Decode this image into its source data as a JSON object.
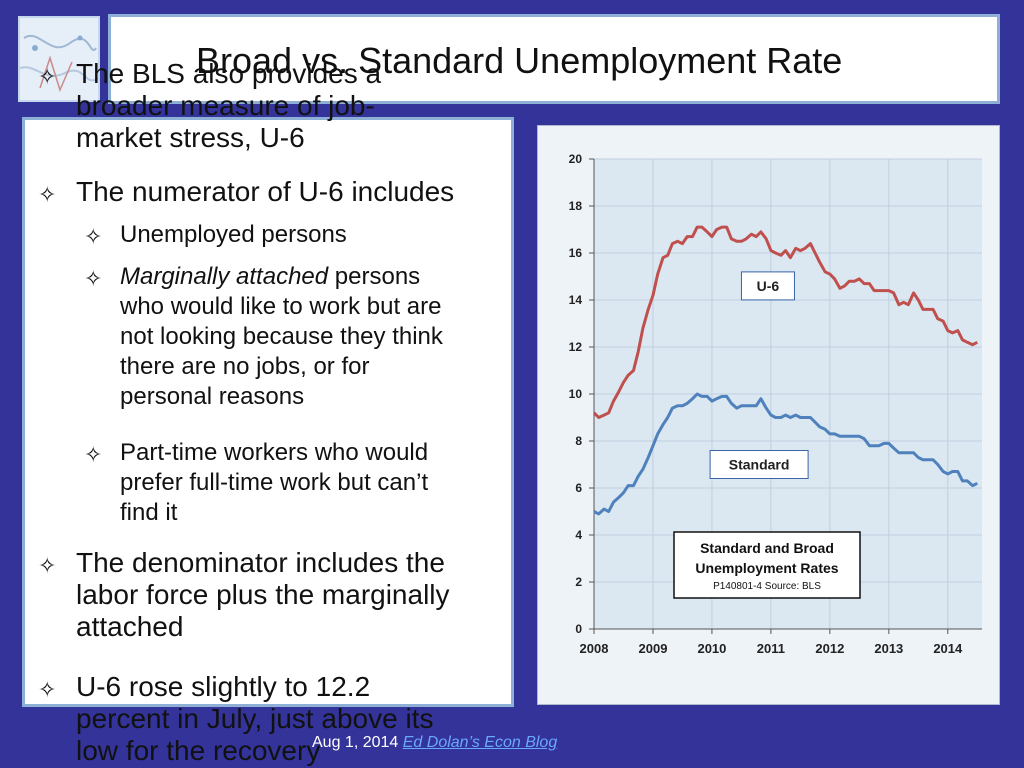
{
  "slide": {
    "title": "Broad vs. Standard Unemployment Rate",
    "bullets": [
      {
        "level": 1,
        "lines": [
          "The BLS also provides a",
          "broader measure of job-",
          "market stress, U-6"
        ]
      },
      {
        "level": 1,
        "lines": [
          "The numerator of U-6 includes"
        ]
      },
      {
        "level": 2,
        "lines": [
          "Unemployed persons"
        ]
      },
      {
        "level": 2,
        "emph": "Marginally attached",
        "lines": [
          " persons",
          "who would like to work but are",
          "not looking because they think",
          "there are no jobs, or for",
          "personal reasons"
        ]
      },
      {
        "level": 2,
        "lines": [
          "Part-time workers who would",
          "prefer full-time work but can’t",
          "find it"
        ]
      },
      {
        "level": 1,
        "lines": [
          "The denominator includes the",
          "labor force plus the marginally",
          "attached"
        ]
      },
      {
        "level": 1,
        "lines": [
          "U-6 rose slightly to 12.2",
          "percent in July, just above its",
          "low for the recovery"
        ]
      }
    ],
    "footer": {
      "date": "Aug 1, 2014",
      "link_text": "Ed Dolan’s Econ Blog"
    }
  },
  "chart_data": {
    "type": "line",
    "title": "Standard and Broad Unemployment Rates",
    "subtitle": "P140801-4 Source: BLS",
    "xlim": [
      2008,
      2014.58
    ],
    "ylim": [
      0,
      20
    ],
    "yticks": [
      0,
      2,
      4,
      6,
      8,
      10,
      12,
      14,
      16,
      18,
      20
    ],
    "xticks": [
      2008,
      2009,
      2010,
      2011,
      2012,
      2013,
      2014
    ],
    "grid": true,
    "series": [
      {
        "name": "U-6",
        "color": "#c0504d",
        "x": [
          2008.0,
          2008.08,
          2008.17,
          2008.25,
          2008.33,
          2008.42,
          2008.5,
          2008.58,
          2008.67,
          2008.75,
          2008.83,
          2008.92,
          2009.0,
          2009.08,
          2009.17,
          2009.25,
          2009.33,
          2009.42,
          2009.5,
          2009.58,
          2009.67,
          2009.75,
          2009.83,
          2009.92,
          2010.0,
          2010.08,
          2010.17,
          2010.25,
          2010.33,
          2010.42,
          2010.5,
          2010.58,
          2010.67,
          2010.75,
          2010.83,
          2010.92,
          2011.0,
          2011.08,
          2011.17,
          2011.25,
          2011.33,
          2011.42,
          2011.5,
          2011.58,
          2011.67,
          2011.75,
          2011.83,
          2011.92,
          2012.0,
          2012.08,
          2012.17,
          2012.25,
          2012.33,
          2012.42,
          2012.5,
          2012.58,
          2012.67,
          2012.75,
          2012.83,
          2012.92,
          2013.0,
          2013.08,
          2013.17,
          2013.25,
          2013.33,
          2013.42,
          2013.5,
          2013.58,
          2013.67,
          2013.75,
          2013.83,
          2013.92,
          2014.0,
          2014.08,
          2014.17,
          2014.25,
          2014.33,
          2014.42,
          2014.5
        ],
        "values": [
          9.2,
          9.0,
          9.1,
          9.2,
          9.7,
          10.1,
          10.5,
          10.8,
          11.0,
          11.8,
          12.8,
          13.6,
          14.2,
          15.1,
          15.8,
          15.9,
          16.4,
          16.5,
          16.4,
          16.7,
          16.7,
          17.1,
          17.1,
          16.9,
          16.7,
          17.0,
          17.1,
          17.1,
          16.6,
          16.5,
          16.5,
          16.6,
          16.8,
          16.7,
          16.9,
          16.6,
          16.1,
          16.0,
          15.9,
          16.1,
          15.8,
          16.2,
          16.1,
          16.2,
          16.4,
          16.0,
          15.6,
          15.2,
          15.1,
          14.9,
          14.5,
          14.6,
          14.8,
          14.8,
          14.9,
          14.7,
          14.7,
          14.4,
          14.4,
          14.4,
          14.4,
          14.3,
          13.8,
          13.9,
          13.8,
          14.3,
          14.0,
          13.6,
          13.6,
          13.6,
          13.2,
          13.1,
          12.7,
          12.6,
          12.7,
          12.3,
          12.2,
          12.1,
          12.2
        ]
      },
      {
        "name": "Standard",
        "color": "#4f81bd",
        "x": [
          2008.0,
          2008.08,
          2008.17,
          2008.25,
          2008.33,
          2008.42,
          2008.5,
          2008.58,
          2008.67,
          2008.75,
          2008.83,
          2008.92,
          2009.0,
          2009.08,
          2009.17,
          2009.25,
          2009.33,
          2009.42,
          2009.5,
          2009.58,
          2009.67,
          2009.75,
          2009.83,
          2009.92,
          2010.0,
          2010.08,
          2010.17,
          2010.25,
          2010.33,
          2010.42,
          2010.5,
          2010.58,
          2010.67,
          2010.75,
          2010.83,
          2010.92,
          2011.0,
          2011.08,
          2011.17,
          2011.25,
          2011.33,
          2011.42,
          2011.5,
          2011.58,
          2011.67,
          2011.75,
          2011.83,
          2011.92,
          2012.0,
          2012.08,
          2012.17,
          2012.25,
          2012.33,
          2012.42,
          2012.5,
          2012.58,
          2012.67,
          2012.75,
          2012.83,
          2012.92,
          2013.0,
          2013.08,
          2013.17,
          2013.25,
          2013.33,
          2013.42,
          2013.5,
          2013.58,
          2013.67,
          2013.75,
          2013.83,
          2013.92,
          2014.0,
          2014.08,
          2014.17,
          2014.25,
          2014.33,
          2014.42,
          2014.5
        ],
        "values": [
          5.0,
          4.9,
          5.1,
          5.0,
          5.4,
          5.6,
          5.8,
          6.1,
          6.1,
          6.5,
          6.8,
          7.3,
          7.8,
          8.3,
          8.7,
          9.0,
          9.4,
          9.5,
          9.5,
          9.6,
          9.8,
          10.0,
          9.9,
          9.9,
          9.7,
          9.8,
          9.9,
          9.9,
          9.6,
          9.4,
          9.5,
          9.5,
          9.5,
          9.5,
          9.8,
          9.4,
          9.1,
          9.0,
          9.0,
          9.1,
          9.0,
          9.1,
          9.0,
          9.0,
          9.0,
          8.8,
          8.6,
          8.5,
          8.3,
          8.3,
          8.2,
          8.2,
          8.2,
          8.2,
          8.2,
          8.1,
          7.8,
          7.8,
          7.8,
          7.9,
          7.9,
          7.7,
          7.5,
          7.5,
          7.5,
          7.5,
          7.3,
          7.2,
          7.2,
          7.2,
          7.0,
          6.7,
          6.6,
          6.7,
          6.7,
          6.3,
          6.3,
          6.1,
          6.2
        ]
      }
    ],
    "series_labels": [
      {
        "text": "U-6",
        "x": 2010.95,
        "y": 14.6
      },
      {
        "text": "Standard",
        "x": 2010.8,
        "y": 7.0
      }
    ],
    "colors": {
      "plot_bg": "#dbe8f2",
      "grid": "#bfcfde",
      "axis": "#555555",
      "label_box_border": "#3a63a8"
    }
  }
}
